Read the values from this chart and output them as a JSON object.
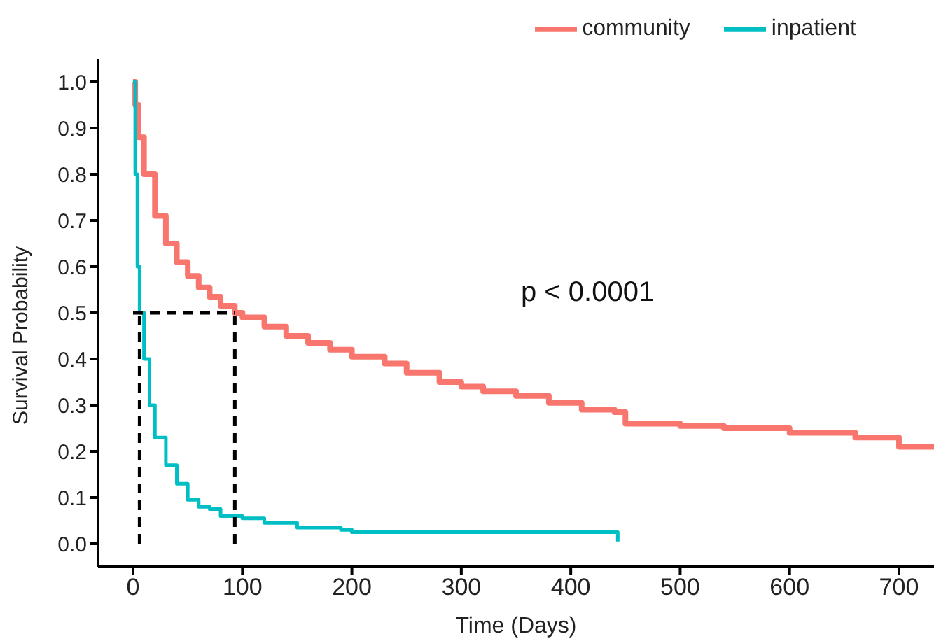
{
  "chart_data": {
    "type": "step",
    "xlabel": "Time (Days)",
    "ylabel": "Survival Probability",
    "annotations": [
      "p < 0.0001"
    ],
    "xlim": [
      -32,
      732
    ],
    "xticks": [
      0,
      100,
      200,
      300,
      400,
      500,
      600,
      700
    ],
    "ylim": [
      -0.05,
      1.05
    ],
    "yticks": [
      {
        "value": 0,
        "label": "0.0"
      },
      0.1,
      0.2,
      0.3,
      0.4,
      0.5,
      0.6,
      0.7,
      0.8,
      0.9,
      {
        "value": 1,
        "label": "1.0"
      }
    ],
    "grid": false,
    "legend": "top",
    "marker": "none",
    "ref_lines": [
      {
        "axis": "y",
        "value": 0.5,
        "color": "#000000",
        "line_style": "dashed"
      },
      {
        "axis": "x",
        "value": 6,
        "color": "#000000",
        "line_style": "dashed"
      },
      {
        "axis": "x",
        "value": 93,
        "color": "#000000",
        "line_style": "dashed"
      }
    ],
    "series": [
      {
        "name": "community",
        "color": "#f8766d",
        "x": [
          0,
          2,
          5,
          10,
          20,
          30,
          40,
          50,
          60,
          70,
          80,
          93,
          100,
          120,
          140,
          160,
          180,
          200,
          230,
          250,
          280,
          300,
          320,
          350,
          380,
          410,
          440,
          450,
          500,
          540,
          600,
          660,
          700,
          732
        ],
        "values": [
          1.0,
          0.95,
          0.88,
          0.8,
          0.71,
          0.65,
          0.61,
          0.58,
          0.555,
          0.535,
          0.515,
          0.5,
          0.49,
          0.47,
          0.45,
          0.435,
          0.42,
          0.405,
          0.39,
          0.37,
          0.35,
          0.34,
          0.33,
          0.32,
          0.305,
          0.29,
          0.285,
          0.26,
          0.255,
          0.25,
          0.24,
          0.23,
          0.21,
          0.21
        ]
      },
      {
        "name": "inpatient",
        "color": "#00bfc4",
        "x": [
          0,
          2,
          4,
          6,
          10,
          15,
          20,
          30,
          40,
          50,
          60,
          70,
          80,
          100,
          120,
          150,
          190,
          200,
          440,
          443
        ],
        "values": [
          1.0,
          0.8,
          0.6,
          0.5,
          0.4,
          0.3,
          0.23,
          0.17,
          0.13,
          0.095,
          0.08,
          0.075,
          0.06,
          0.055,
          0.045,
          0.035,
          0.03,
          0.025,
          0.025,
          0.005
        ]
      }
    ]
  }
}
